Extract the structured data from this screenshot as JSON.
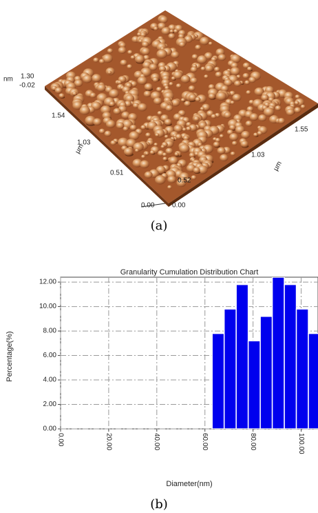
{
  "figure_a": {
    "labels": [
      "nm",
      "1.30",
      "-0.02",
      "1.54",
      "1.03",
      "µm",
      "0.51",
      "0.00",
      "0.00",
      "0.52",
      "1.03",
      "1.55",
      "µm"
    ],
    "caption": "(a)"
  },
  "chart_data": {
    "type": "histogram",
    "title": "Granularity Cumulation Distribution  Chart",
    "x_label": "Diameter(nm)",
    "y_label": "Percentage(%)",
    "color": "#0000ee",
    "grid": true,
    "bins": [
      63,
      68,
      73,
      78,
      83,
      88,
      93,
      98,
      103,
      108
    ],
    "values": [
      7.8,
      9.8,
      11.8,
      7.2,
      9.2,
      12.4,
      11.8,
      9.8,
      7.8
    ],
    "xlim": [
      0,
      107
    ],
    "ylim": [
      0,
      12.4
    ],
    "xticks": [
      {
        "value": 0,
        "label": "0.00"
      },
      {
        "value": 20,
        "label": "20.00"
      },
      {
        "value": 40,
        "label": "40.00"
      },
      {
        "value": 60,
        "label": "60.00"
      },
      {
        "value": 80,
        "label": "80.00"
      },
      {
        "value": 100,
        "label": "100.00"
      }
    ],
    "yticks": [
      {
        "value": 0,
        "label": "0.00"
      },
      {
        "value": 2,
        "label": "2.00"
      },
      {
        "value": 4,
        "label": "4.00"
      },
      {
        "value": 6,
        "label": "6.00"
      },
      {
        "value": 8,
        "label": "8.00"
      },
      {
        "value": 10,
        "label": "10.00"
      },
      {
        "value": 12,
        "label": "12.00"
      }
    ]
  },
  "caption_b": "(b)"
}
